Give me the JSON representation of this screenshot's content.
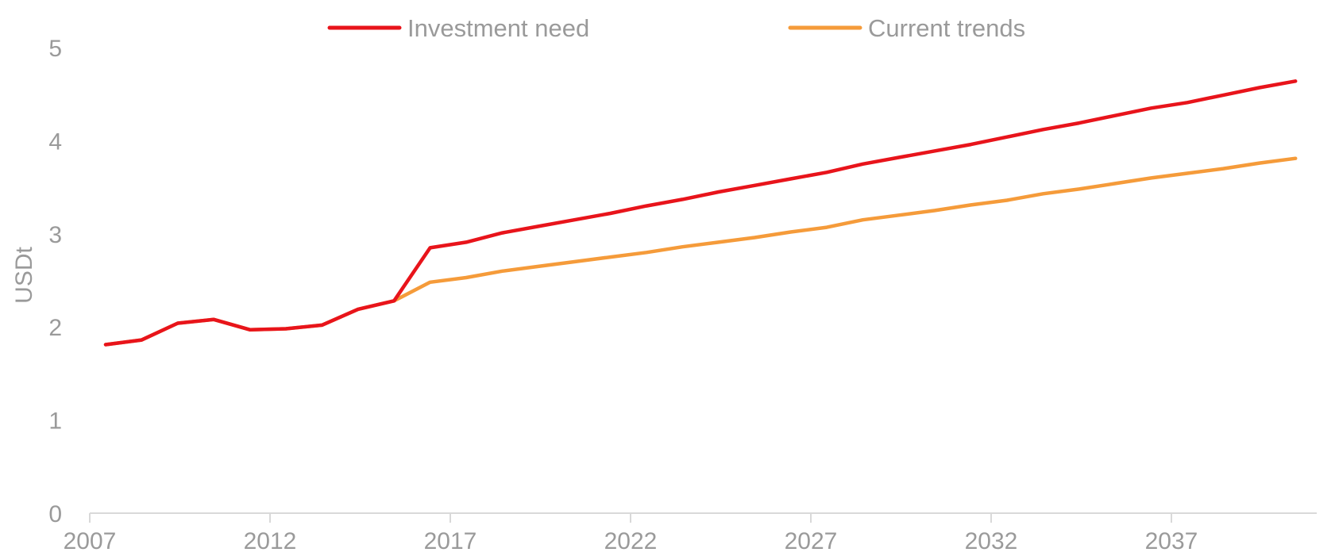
{
  "chart_data": {
    "type": "line",
    "title": "",
    "xlabel": "",
    "ylabel": "USDt",
    "ylim": [
      0,
      5
    ],
    "xlim": [
      2007,
      2040
    ],
    "yticks": [
      0,
      1,
      2,
      3,
      4,
      5
    ],
    "xticks": [
      2007,
      2012,
      2017,
      2022,
      2027,
      2032,
      2037
    ],
    "grid": false,
    "legend": "top",
    "x": [
      2007,
      2008,
      2009,
      2010,
      2011,
      2012,
      2013,
      2014,
      2015,
      2016,
      2017,
      2018,
      2019,
      2020,
      2021,
      2022,
      2023,
      2024,
      2025,
      2026,
      2027,
      2028,
      2029,
      2030,
      2031,
      2032,
      2033,
      2034,
      2035,
      2036,
      2037,
      2038,
      2039,
      2040
    ],
    "series": [
      {
        "name": "Investment need",
        "color": "#e8141b",
        "values": [
          1.81,
          1.86,
          2.04,
          2.08,
          1.97,
          1.98,
          2.02,
          2.19,
          2.28,
          2.85,
          2.91,
          3.01,
          3.08,
          3.15,
          3.22,
          3.3,
          3.37,
          3.45,
          3.52,
          3.59,
          3.66,
          3.75,
          3.82,
          3.89,
          3.96,
          4.04,
          4.12,
          4.19,
          4.27,
          4.35,
          4.41,
          4.49,
          4.57,
          4.64
        ]
      },
      {
        "name": "Current trends",
        "color": "#f59b3a",
        "values": [
          1.81,
          1.86,
          2.04,
          2.08,
          1.97,
          1.98,
          2.02,
          2.19,
          2.28,
          2.48,
          2.53,
          2.6,
          2.65,
          2.7,
          2.75,
          2.8,
          2.86,
          2.91,
          2.96,
          3.02,
          3.07,
          3.15,
          3.2,
          3.25,
          3.31,
          3.36,
          3.43,
          3.48,
          3.54,
          3.6,
          3.65,
          3.7,
          3.76,
          3.81
        ]
      }
    ]
  }
}
